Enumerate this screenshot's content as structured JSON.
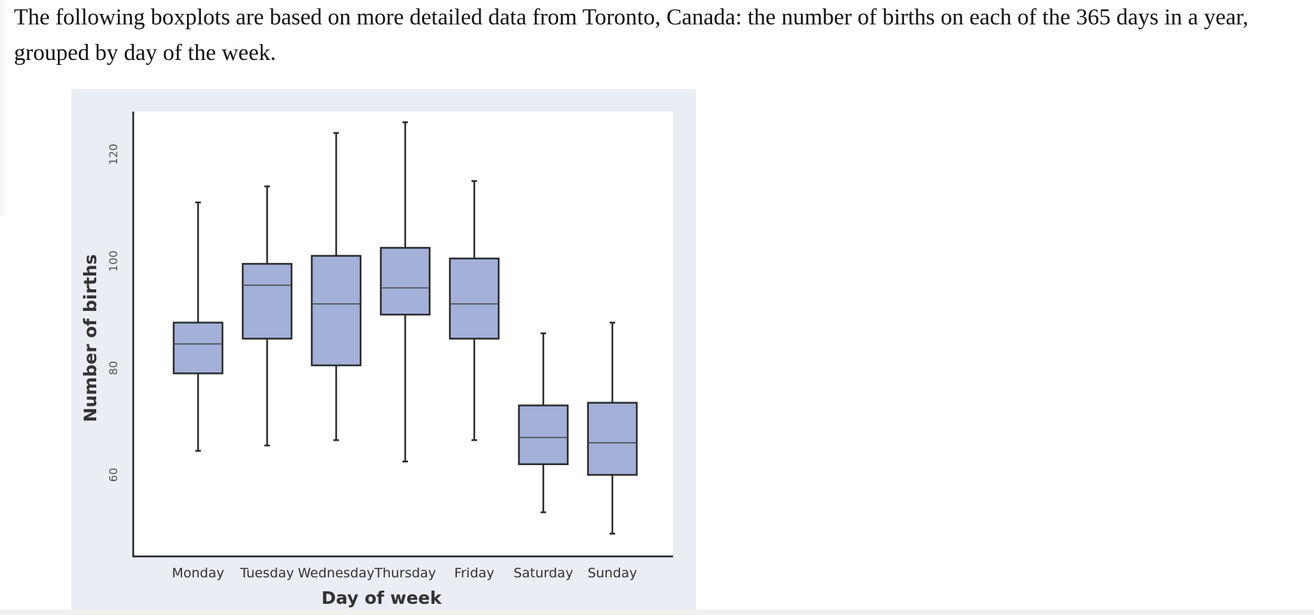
{
  "intro_text": "The following boxplots are based on more detailed data from Toronto, Canada: the number of births on each of the 365 days in a year, grouped by day of the week.",
  "colors": {
    "box_fill": "#a3b0d8",
    "box_stroke": "#2a2a2a",
    "panel_background": "#ebedf5",
    "plot_background": "#ffffff"
  },
  "chart_data": {
    "type": "boxplot",
    "title": "",
    "xlabel": "Day of week",
    "ylabel": "Number of births",
    "ylim": [
      45,
      128
    ],
    "yticks": [
      60,
      80,
      100,
      120
    ],
    "grid": false,
    "categories": [
      "Monday",
      "Tuesday",
      "Wednesday",
      "Thursday",
      "Friday",
      "Saturday",
      "Sunday"
    ],
    "boxes": [
      {
        "category": "Monday",
        "min": 64.5,
        "q1": 79,
        "median": 84.5,
        "q3": 88.5,
        "max": 111
      },
      {
        "category": "Tuesday",
        "min": 65.5,
        "q1": 85.5,
        "median": 95.5,
        "q3": 99.5,
        "max": 114
      },
      {
        "category": "Wednesday",
        "min": 66.5,
        "q1": 80.5,
        "median": 92,
        "q3": 101,
        "max": 124
      },
      {
        "category": "Thursday",
        "min": 62.5,
        "q1": 90,
        "median": 95,
        "q3": 102.5,
        "max": 126
      },
      {
        "category": "Friday",
        "min": 66.5,
        "q1": 85.5,
        "median": 92,
        "q3": 100.5,
        "max": 115
      },
      {
        "category": "Saturday",
        "min": 53,
        "q1": 62,
        "median": 67,
        "q3": 73,
        "max": 86.5
      },
      {
        "category": "Sunday",
        "min": 49,
        "q1": 60,
        "median": 66,
        "q3": 73.5,
        "max": 88.5
      }
    ]
  }
}
